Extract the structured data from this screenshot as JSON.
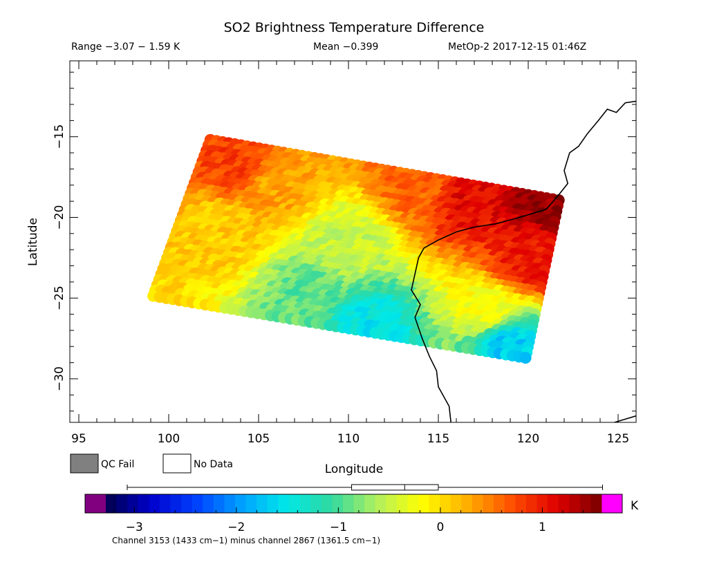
{
  "chart_data": {
    "type": "heatmap",
    "title": "SO2 Brightness Temperature Difference",
    "header": {
      "range": "Range −3.07 − 1.59 K",
      "mean": "Mean −0.399",
      "satellite_time": "MetOp-2 2017-12-15 01:46Z"
    },
    "xlabel": "Longitude",
    "ylabel": "Latitude",
    "xlim": [
      94.5,
      126
    ],
    "ylim": [
      -32.7,
      -10.3
    ],
    "xticks": [
      95,
      100,
      105,
      110,
      115,
      120,
      125
    ],
    "yticks": [
      -15,
      -20,
      -25,
      -30
    ],
    "x_tick_labels": [
      "95",
      "100",
      "105",
      "110",
      "115",
      "120",
      "125"
    ],
    "y_tick_labels": [
      "−15",
      "−20",
      "−25",
      "−30"
    ],
    "swath_corners": {
      "top_left": [
        102.2,
        -15.0
      ],
      "top_right": [
        121.9,
        -18.8
      ],
      "bottom_right": [
        120.0,
        -28.9
      ],
      "bottom_left": [
        98.9,
        -25.0
      ]
    },
    "field_anchors": [
      {
        "lon": 104,
        "lat": -17,
        "value": 0.8
      },
      {
        "lon": 103,
        "lat": -21,
        "value": 0.1
      },
      {
        "lon": 106,
        "lat": -18,
        "value": 0.3
      },
      {
        "lon": 110,
        "lat": -22,
        "value": -0.5
      },
      {
        "lon": 108,
        "lat": -25,
        "value": -0.9
      },
      {
        "lon": 111,
        "lat": -27,
        "value": -1.5
      },
      {
        "lon": 114,
        "lat": -18,
        "value": 0.6
      },
      {
        "lon": 117,
        "lat": -19,
        "value": 1.1
      },
      {
        "lon": 121,
        "lat": -19,
        "value": 1.45
      },
      {
        "lon": 120,
        "lat": -23,
        "value": 1.0
      },
      {
        "lon": 118,
        "lat": -26,
        "value": -0.2
      },
      {
        "lon": 119,
        "lat": -28,
        "value": -1.7
      }
    ],
    "coastline": [
      [
        126,
        -12.8
      ],
      [
        125.4,
        -12.9
      ],
      [
        124.9,
        -13.5
      ],
      [
        124.4,
        -13.3
      ],
      [
        123.9,
        -14.0
      ],
      [
        123.3,
        -14.8
      ],
      [
        122.8,
        -15.6
      ],
      [
        122.3,
        -16.0
      ],
      [
        122.0,
        -17.1
      ],
      [
        122.2,
        -17.9
      ],
      [
        121.7,
        -18.6
      ],
      [
        121.0,
        -19.5
      ],
      [
        119.5,
        -20.0
      ],
      [
        118.2,
        -20.4
      ],
      [
        117.0,
        -20.6
      ],
      [
        116.0,
        -20.9
      ],
      [
        115.0,
        -21.4
      ],
      [
        114.2,
        -21.9
      ],
      [
        113.9,
        -22.5
      ],
      [
        113.7,
        -23.5
      ],
      [
        113.5,
        -24.5
      ],
      [
        114.0,
        -25.4
      ],
      [
        113.7,
        -26.2
      ],
      [
        114.1,
        -27.5
      ],
      [
        114.5,
        -28.6
      ],
      [
        114.9,
        -29.5
      ],
      [
        115.0,
        -30.5
      ],
      [
        115.6,
        -31.7
      ],
      [
        115.7,
        -32.7
      ]
    ],
    "coastline_south": [
      [
        123.8,
        -33.0
      ],
      [
        124.8,
        -32.7
      ],
      [
        126,
        -32.3
      ]
    ],
    "colorbar": {
      "vmin": -3.28,
      "vmax": 1.58,
      "ticks": [
        -3,
        -2,
        -1,
        0,
        1
      ],
      "tick_labels": [
        "−3",
        "−2",
        "−1",
        "0",
        "1"
      ],
      "unit": "K",
      "under_color": "#800080",
      "over_color": "#ff00ff",
      "stops": [
        "#00004a",
        "#0000cc",
        "#0040ff",
        "#00a0ff",
        "#00e8e8",
        "#30d8a0",
        "#b0f060",
        "#ffff00",
        "#ffb000",
        "#ff5000",
        "#e00000",
        "#780000"
      ],
      "boxplot": {
        "whisker_low": -3.07,
        "q1": -0.87,
        "median": -0.35,
        "q3": -0.02,
        "whisker_high": 1.59
      }
    },
    "legend": {
      "qc_fail_label": "QC Fail",
      "qc_fail_color": "#808080",
      "no_data_label": "No Data",
      "no_data_color": "#ffffff"
    },
    "caption": "Channel 3153 (1433 cm−1) minus channel 2867 (1361.5 cm−1)"
  }
}
